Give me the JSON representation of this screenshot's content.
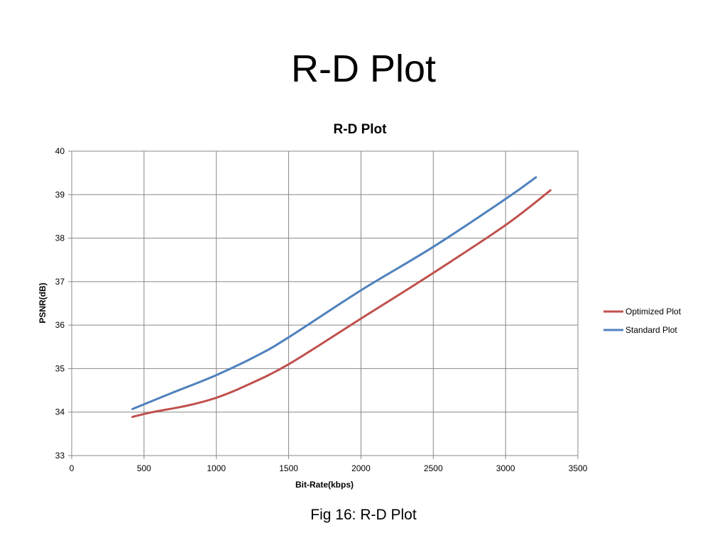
{
  "slide": {
    "title": "R-D Plot",
    "caption": "Fig  16: R-D Plot"
  },
  "chart_data": {
    "type": "line",
    "title": "R-D Plot",
    "xlabel": "Bit-Rate(kbps)",
    "ylabel": "PSNR(dB)",
    "xlim": [
      0,
      3500
    ],
    "ylim": [
      33,
      40
    ],
    "xticks": [
      0,
      500,
      1000,
      1500,
      2000,
      2500,
      3000,
      3500
    ],
    "yticks": [
      33,
      34,
      35,
      36,
      37,
      38,
      39,
      40
    ],
    "grid": true,
    "legend_position": "right",
    "series": [
      {
        "name": "Optimized Plot",
        "color": "#c0504d",
        "points": [
          [
            420,
            33.89
          ],
          [
            560,
            34.0
          ],
          [
            800,
            34.15
          ],
          [
            1000,
            34.33
          ],
          [
            1200,
            34.6
          ],
          [
            1500,
            35.1
          ],
          [
            2000,
            36.15
          ],
          [
            2500,
            37.2
          ],
          [
            3000,
            38.3
          ],
          [
            3310,
            39.1
          ]
        ]
      },
      {
        "name": "Standard Plot",
        "color": "#4f81bd",
        "points": [
          [
            420,
            34.07
          ],
          [
            700,
            34.45
          ],
          [
            1000,
            34.85
          ],
          [
            1300,
            35.33
          ],
          [
            1500,
            35.72
          ],
          [
            2000,
            36.8
          ],
          [
            2500,
            37.8
          ],
          [
            3000,
            38.9
          ],
          [
            3210,
            39.4
          ]
        ]
      }
    ]
  }
}
